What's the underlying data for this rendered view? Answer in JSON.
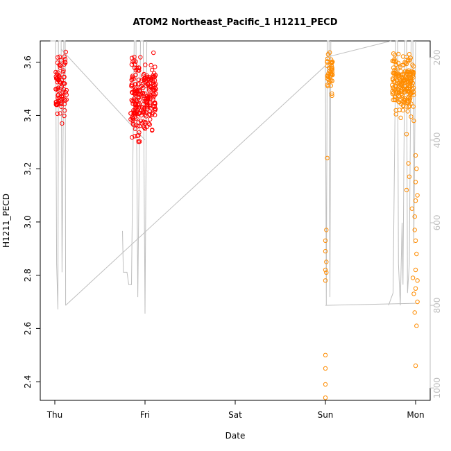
{
  "chart_data": {
    "type": "scatter",
    "title": "ATOM2 Northeast_Pacific_1 H1211_PECD",
    "xlabel": "Date",
    "ylabel": "H1211_PECD",
    "x_ticks": [
      "Thu",
      "Fri",
      "Sat",
      "Sun",
      "Mon"
    ],
    "y_ticks": [
      "2.4",
      "2.6",
      "2.8",
      "3.0",
      "3.2",
      "3.4",
      "3.6"
    ],
    "y_range": [
      2.33,
      3.68
    ],
    "y2_ticks": [
      "200",
      "400",
      "600",
      "800",
      "1000"
    ],
    "y2_range": [
      1030,
      160
    ],
    "y2_reversed": true,
    "grid": false,
    "colors": {
      "flight1": "#ff0000",
      "flight2": "#ff8c00",
      "altitude": "#bebebe",
      "axis": "#000000",
      "y2_axis": "#bebebe"
    },
    "series": [
      {
        "color_key": "flight1",
        "clusters": [
          {
            "day_center": 0.07,
            "day_spread": 0.06,
            "count": 80,
            "y_center": 3.51,
            "y_spread": 0.065,
            "extra": [
              [
                0.08,
                3.37
              ],
              [
                0.02,
                3.44
              ],
              [
                0.05,
                3.59
              ]
            ]
          },
          {
            "day_center": 0.98,
            "day_spread": 0.14,
            "count": 240,
            "y_center": 3.47,
            "y_spread": 0.065,
            "extra": [
              [
                0.92,
                3.36
              ],
              [
                1.0,
                3.35
              ],
              [
                0.9,
                3.57
              ],
              [
                0.93,
                3.58
              ],
              [
                1.04,
                3.37
              ]
            ]
          }
        ]
      },
      {
        "color_key": "flight2",
        "clusters": [
          {
            "day_center": 3.05,
            "day_spread": 0.03,
            "count": 40,
            "y_center": 3.56,
            "y_spread": 0.04,
            "extra": [
              [
                3.02,
                3.24
              ],
              [
                3.01,
                2.97
              ],
              [
                3.0,
                2.93
              ],
              [
                3.0,
                2.89
              ],
              [
                3.01,
                2.85
              ],
              [
                3.0,
                2.82
              ],
              [
                3.01,
                2.81
              ],
              [
                3.0,
                2.78
              ],
              [
                3.0,
                2.5
              ],
              [
                3.0,
                2.45
              ],
              [
                3.0,
                2.39
              ],
              [
                3.0,
                2.34
              ],
              [
                3.03,
                3.63
              ],
              [
                3.02,
                3.6
              ]
            ]
          },
          {
            "day_center": 3.86,
            "day_spread": 0.12,
            "count": 200,
            "y_center": 3.52,
            "y_spread": 0.045,
            "extra": [
              [
                3.9,
                3.33
              ],
              [
                3.92,
                3.22
              ],
              [
                3.93,
                3.17
              ],
              [
                3.9,
                3.12
              ],
              [
                3.96,
                3.05
              ],
              [
                3.99,
                2.97
              ],
              [
                4.0,
                2.93
              ],
              [
                3.97,
                2.79
              ],
              [
                4.0,
                2.75
              ],
              [
                4.02,
                2.7
              ],
              [
                3.99,
                2.66
              ],
              [
                4.01,
                2.61
              ],
              [
                4.0,
                2.46
              ],
              [
                3.98,
                3.38
              ],
              [
                4.0,
                3.25
              ],
              [
                4.01,
                3.2
              ],
              [
                4.0,
                3.15
              ],
              [
                4.02,
                3.1
              ],
              [
                4.0,
                3.08
              ],
              [
                3.99,
                3.02
              ],
              [
                4.01,
                2.88
              ],
              [
                4.0,
                2.82
              ],
              [
                4.02,
                2.78
              ],
              [
                3.98,
                2.73
              ],
              [
                3.88,
                3.6
              ],
              [
                3.9,
                3.62
              ],
              [
                3.93,
                3.63
              ],
              [
                3.82,
                3.45
              ],
              [
                3.86,
                3.42
              ]
            ]
          }
        ]
      }
    ],
    "altitude": {
      "axis": "y2",
      "path": [
        [
          -0.05,
          160
        ],
        [
          0.01,
          160
        ],
        [
          0.02,
          700
        ],
        [
          0.035,
          810
        ],
        [
          0.04,
          160
        ],
        [
          0.07,
          160
        ],
        [
          0.08,
          720
        ],
        [
          0.1,
          160
        ],
        [
          0.115,
          160
        ],
        [
          0.12,
          800
        ],
        [
          3.0,
          220
        ],
        [
          3.01,
          800
        ],
        [
          3.02,
          160
        ],
        [
          3.04,
          160
        ],
        [
          3.05,
          780
        ],
        [
          3.06,
          160
        ],
        [
          3.7,
          800
        ],
        [
          3.75,
          770
        ],
        [
          3.78,
          160
        ],
        [
          3.8,
          160
        ],
        [
          3.81,
          700
        ],
        [
          3.83,
          800
        ],
        [
          3.85,
          600
        ],
        [
          3.86,
          750
        ],
        [
          3.88,
          160
        ],
        [
          3.9,
          160
        ],
        [
          3.91,
          770
        ],
        [
          3.93,
          700
        ],
        [
          3.95,
          160
        ],
        [
          3.97,
          160
        ],
        [
          3.98,
          650
        ],
        [
          4.0,
          160
        ]
      ],
      "return_path": [
        [
          0.07,
          180
        ],
        [
          1.0,
          400
        ]
      ],
      "sunday_line": [
        [
          3.0,
          200
        ],
        [
          3.73,
          160
        ]
      ],
      "sunday_base": [
        [
          3.0,
          800
        ],
        [
          4.0,
          795
        ]
      ],
      "friday_drop": [
        [
          0.75,
          620
        ],
        [
          0.76,
          720
        ],
        [
          0.8,
          720
        ],
        [
          0.82,
          750
        ],
        [
          0.85,
          750
        ],
        [
          0.88,
          160
        ],
        [
          0.9,
          160
        ],
        [
          0.92,
          780
        ],
        [
          0.95,
          160
        ],
        [
          0.98,
          160
        ],
        [
          1.0,
          820
        ],
        [
          1.02,
          160
        ]
      ]
    }
  }
}
